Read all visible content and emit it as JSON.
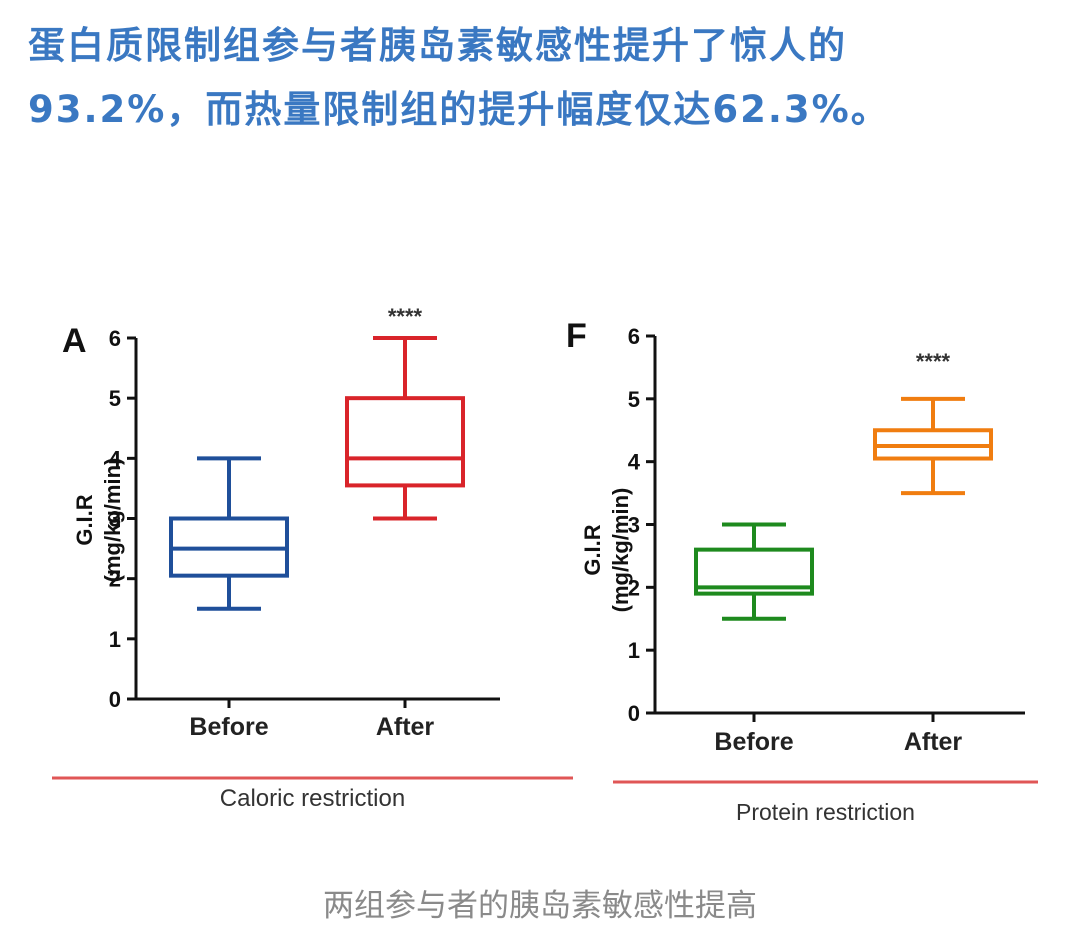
{
  "headline": {
    "line1": "蛋白质限制组参与者胰岛素敏感性提升了惊人的",
    "line2": "93.2%，而热量限制组的提升幅度仅达62.3%。"
  },
  "caption": "两组参与者的胰岛素敏感性提高",
  "colors": {
    "headline": "#3a78c2",
    "divider": "#e05656",
    "caption": "#8a8a8a",
    "caloric_before": "#1f4f9a",
    "caloric_after": "#d9242a",
    "protein_before": "#1e8a1e",
    "protein_after": "#f07d10"
  },
  "chart_data": [
    {
      "type": "boxplot",
      "panel_label": "A",
      "group_label": "Caloric restriction",
      "ylabel_line1": "G.I.R",
      "ylabel_line2": "(mg/kg/min)",
      "ylim": [
        0,
        6
      ],
      "yticks": [
        "0",
        "1",
        "2",
        "3",
        "4",
        "5",
        "6"
      ],
      "categories": [
        "Before",
        "After"
      ],
      "significance": "****",
      "boxes": [
        {
          "category": "Before",
          "min": 1.5,
          "q1": 2.05,
          "median": 2.5,
          "q3": 3.0,
          "max": 4.0,
          "color": "#1f4f9a"
        },
        {
          "category": "After",
          "min": 3.0,
          "q1": 3.55,
          "median": 4.0,
          "q3": 5.0,
          "max": 6.0,
          "color": "#d9242a"
        }
      ]
    },
    {
      "type": "boxplot",
      "panel_label": "F",
      "group_label": "Protein restriction",
      "ylabel_line1": "G.I.R",
      "ylabel_line2": "(mg/kg/min)",
      "ylim": [
        0,
        6
      ],
      "yticks": [
        "0",
        "1",
        "2",
        "3",
        "4",
        "5",
        "6"
      ],
      "categories": [
        "Before",
        "After"
      ],
      "significance": "****",
      "boxes": [
        {
          "category": "Before",
          "min": 1.5,
          "q1": 1.9,
          "median": 2.0,
          "q3": 2.6,
          "max": 3.0,
          "color": "#1e8a1e"
        },
        {
          "category": "After",
          "min": 3.5,
          "q1": 4.05,
          "median": 4.25,
          "q3": 4.5,
          "max": 5.0,
          "color": "#f07d10"
        }
      ]
    }
  ]
}
